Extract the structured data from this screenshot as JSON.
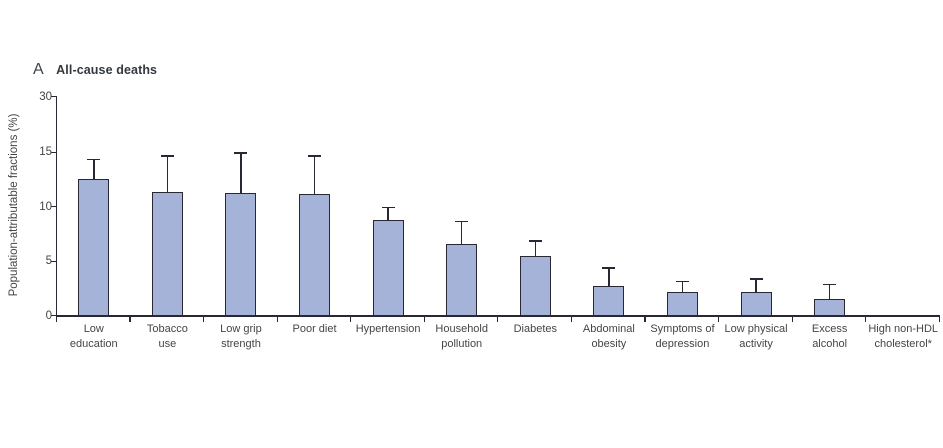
{
  "figure": {
    "panel_label": "A",
    "panel_title": "All-cause deaths"
  },
  "chart_data": {
    "type": "bar",
    "panel_label": "A",
    "title": "All-cause deaths",
    "xlabel": "",
    "ylabel": "Population-attributable fractions (%)",
    "ylim": [
      0,
      30
    ],
    "y_ticks": [
      0,
      5,
      10,
      15,
      30
    ],
    "axis_break": "y-axis compressed above 15 (30 tick sits just above 15)",
    "grid": false,
    "legend": "none",
    "bar_color": "#a6b3d8",
    "line_color": "#272833",
    "error_bars": "upper 95% CI whiskers only",
    "categories": [
      "Low education",
      "Tobacco use",
      "Low grip strength",
      "Poor diet",
      "Hypertension",
      "Household pollution",
      "Diabetes",
      "Abdominal obesity",
      "Symptoms of depression",
      "Low physical activity",
      "Excess alcohol",
      "High non-HDL cholesterol*"
    ],
    "category_label_lines": [
      [
        "Low",
        "education"
      ],
      [
        "Tobacco",
        "use"
      ],
      [
        "Low grip",
        "strength"
      ],
      [
        "Poor diet"
      ],
      [
        "Hypertension"
      ],
      [
        "Household",
        "pollution"
      ],
      [
        "Diabetes"
      ],
      [
        "Abdominal",
        "obesity"
      ],
      [
        "Symptoms of",
        "depression"
      ],
      [
        "Low physical",
        "activity"
      ],
      [
        "Excess",
        "alcohol"
      ],
      [
        "High non-HDL",
        "cholesterol*"
      ]
    ],
    "values": [
      12.5,
      11.3,
      11.2,
      11.1,
      8.7,
      6.5,
      5.4,
      2.7,
      2.1,
      2.1,
      1.5,
      0
    ],
    "upper_ci": [
      14.3,
      14.6,
      14.9,
      14.6,
      9.9,
      8.6,
      6.8,
      4.3,
      3.1,
      3.3,
      2.8,
      0
    ]
  }
}
